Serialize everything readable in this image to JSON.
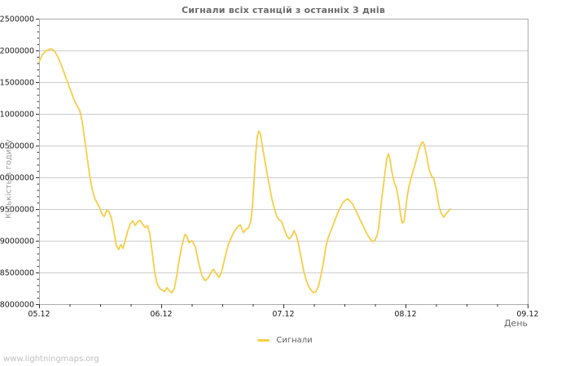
{
  "page": {
    "watermark": "www.lightningmaps.org"
  },
  "colors": {
    "background": "#ffffff",
    "line": "#F6CE47",
    "grid": "#cccccc",
    "plot_border": "#ababab",
    "tick": "#333333",
    "tick_label_text": "#1a1a1a",
    "title_text": "#6b6b6b",
    "y_axis_title_text": "#9a9a9a",
    "x_axis_title_text": "#666666",
    "legend_text": "#5f5f5f",
    "watermark_text": "#c0c0c0"
  },
  "chart_data": {
    "type": "line",
    "title": "Сигнали всіх станцій з останніх 3 днів",
    "xlabel": "День",
    "ylabel": "Кількість в годину",
    "grid": true,
    "ylim": [
      8000000,
      12500000
    ],
    "y_ticks": [
      8000000,
      8500000,
      9000000,
      9500000,
      10000000,
      10500000,
      11000000,
      11500000,
      12000000,
      12500000
    ],
    "y_minor_step": 100000,
    "x_ticks": {
      "labels": [
        "05.12",
        "06.12",
        "07.12",
        "08.12",
        "09.12"
      ],
      "positions_days": [
        0,
        1,
        2,
        3,
        4
      ],
      "minor_step_days": 0.25
    },
    "legend": {
      "position": "bottom-center",
      "entries": [
        {
          "label": "Сигнали",
          "color": "#F6CE47"
        }
      ]
    },
    "series": [
      {
        "name": "Сигнали",
        "color": "#F6CE47",
        "x_unit": "days since 05.12 00:00",
        "y_unit": "signals per hour",
        "points": [
          [
            0.0,
            11820000
          ],
          [
            0.027,
            11930000
          ],
          [
            0.053,
            11990000
          ],
          [
            0.087,
            12020000
          ],
          [
            0.107,
            12020000
          ],
          [
            0.127,
            11990000
          ],
          [
            0.153,
            11900000
          ],
          [
            0.18,
            11780000
          ],
          [
            0.207,
            11640000
          ],
          [
            0.233,
            11500000
          ],
          [
            0.26,
            11360000
          ],
          [
            0.287,
            11220000
          ],
          [
            0.313,
            11120000
          ],
          [
            0.333,
            11050000
          ],
          [
            0.353,
            10880000
          ],
          [
            0.373,
            10600000
          ],
          [
            0.393,
            10320000
          ],
          [
            0.413,
            10050000
          ],
          [
            0.433,
            9820000
          ],
          [
            0.453,
            9680000
          ],
          [
            0.473,
            9600000
          ],
          [
            0.493,
            9530000
          ],
          [
            0.513,
            9430000
          ],
          [
            0.533,
            9380000
          ],
          [
            0.553,
            9480000
          ],
          [
            0.573,
            9460000
          ],
          [
            0.593,
            9350000
          ],
          [
            0.613,
            9150000
          ],
          [
            0.633,
            8920000
          ],
          [
            0.653,
            8860000
          ],
          [
            0.667,
            8940000
          ],
          [
            0.687,
            8880000
          ],
          [
            0.707,
            9020000
          ],
          [
            0.727,
            9160000
          ],
          [
            0.747,
            9270000
          ],
          [
            0.767,
            9310000
          ],
          [
            0.787,
            9240000
          ],
          [
            0.807,
            9300000
          ],
          [
            0.827,
            9320000
          ],
          [
            0.847,
            9260000
          ],
          [
            0.867,
            9210000
          ],
          [
            0.887,
            9240000
          ],
          [
            0.907,
            9100000
          ],
          [
            0.927,
            8800000
          ],
          [
            0.947,
            8500000
          ],
          [
            0.967,
            8320000
          ],
          [
            0.987,
            8250000
          ],
          [
            1.007,
            8220000
          ],
          [
            1.027,
            8200000
          ],
          [
            1.047,
            8260000
          ],
          [
            1.067,
            8210000
          ],
          [
            1.087,
            8180000
          ],
          [
            1.107,
            8250000
          ],
          [
            1.127,
            8450000
          ],
          [
            1.147,
            8700000
          ],
          [
            1.167,
            8900000
          ],
          [
            1.18,
            9000000
          ],
          [
            1.193,
            9100000
          ],
          [
            1.207,
            9080000
          ],
          [
            1.227,
            8970000
          ],
          [
            1.253,
            9000000
          ],
          [
            1.28,
            8900000
          ],
          [
            1.307,
            8650000
          ],
          [
            1.333,
            8450000
          ],
          [
            1.36,
            8370000
          ],
          [
            1.387,
            8420000
          ],
          [
            1.407,
            8500000
          ],
          [
            1.427,
            8550000
          ],
          [
            1.453,
            8470000
          ],
          [
            1.473,
            8420000
          ],
          [
            1.493,
            8500000
          ],
          [
            1.52,
            8720000
          ],
          [
            1.547,
            8920000
          ],
          [
            1.573,
            9050000
          ],
          [
            1.6,
            9150000
          ],
          [
            1.627,
            9220000
          ],
          [
            1.647,
            9250000
          ],
          [
            1.673,
            9130000
          ],
          [
            1.693,
            9180000
          ],
          [
            1.713,
            9200000
          ],
          [
            1.733,
            9300000
          ],
          [
            1.747,
            9550000
          ],
          [
            1.76,
            9950000
          ],
          [
            1.773,
            10350000
          ],
          [
            1.787,
            10650000
          ],
          [
            1.8,
            10730000
          ],
          [
            1.813,
            10680000
          ],
          [
            1.827,
            10500000
          ],
          [
            1.847,
            10280000
          ],
          [
            1.867,
            10050000
          ],
          [
            1.887,
            9850000
          ],
          [
            1.907,
            9650000
          ],
          [
            1.927,
            9500000
          ],
          [
            1.947,
            9380000
          ],
          [
            1.967,
            9320000
          ],
          [
            1.987,
            9300000
          ],
          [
            2.007,
            9180000
          ],
          [
            2.027,
            9080000
          ],
          [
            2.047,
            9030000
          ],
          [
            2.067,
            9070000
          ],
          [
            2.087,
            9160000
          ],
          [
            2.107,
            9080000
          ],
          [
            2.127,
            8920000
          ],
          [
            2.147,
            8720000
          ],
          [
            2.167,
            8520000
          ],
          [
            2.187,
            8380000
          ],
          [
            2.207,
            8280000
          ],
          [
            2.227,
            8220000
          ],
          [
            2.247,
            8180000
          ],
          [
            2.267,
            8200000
          ],
          [
            2.287,
            8280000
          ],
          [
            2.307,
            8450000
          ],
          [
            2.327,
            8650000
          ],
          [
            2.347,
            8900000
          ],
          [
            2.367,
            9050000
          ],
          [
            2.387,
            9150000
          ],
          [
            2.407,
            9250000
          ],
          [
            2.427,
            9350000
          ],
          [
            2.447,
            9450000
          ],
          [
            2.467,
            9530000
          ],
          [
            2.487,
            9600000
          ],
          [
            2.507,
            9640000
          ],
          [
            2.527,
            9660000
          ],
          [
            2.547,
            9620000
          ],
          [
            2.567,
            9580000
          ],
          [
            2.587,
            9500000
          ],
          [
            2.607,
            9420000
          ],
          [
            2.627,
            9340000
          ],
          [
            2.647,
            9260000
          ],
          [
            2.667,
            9180000
          ],
          [
            2.687,
            9100000
          ],
          [
            2.707,
            9040000
          ],
          [
            2.727,
            8990000
          ],
          [
            2.747,
            9000000
          ],
          [
            2.767,
            9080000
          ],
          [
            2.78,
            9200000
          ],
          [
            2.793,
            9450000
          ],
          [
            2.807,
            9700000
          ],
          [
            2.82,
            9880000
          ],
          [
            2.833,
            10100000
          ],
          [
            2.847,
            10300000
          ],
          [
            2.86,
            10370000
          ],
          [
            2.873,
            10280000
          ],
          [
            2.887,
            10100000
          ],
          [
            2.907,
            9920000
          ],
          [
            2.927,
            9820000
          ],
          [
            2.947,
            9600000
          ],
          [
            2.96,
            9400000
          ],
          [
            2.973,
            9280000
          ],
          [
            2.987,
            9300000
          ],
          [
            3.0,
            9480000
          ],
          [
            3.013,
            9680000
          ],
          [
            3.027,
            9850000
          ],
          [
            3.047,
            10000000
          ],
          [
            3.067,
            10130000
          ],
          [
            3.087,
            10270000
          ],
          [
            3.107,
            10420000
          ],
          [
            3.127,
            10520000
          ],
          [
            3.14,
            10560000
          ],
          [
            3.153,
            10520000
          ],
          [
            3.173,
            10330000
          ],
          [
            3.193,
            10120000
          ],
          [
            3.213,
            10020000
          ],
          [
            3.233,
            9970000
          ],
          [
            3.253,
            9780000
          ],
          [
            3.273,
            9550000
          ],
          [
            3.293,
            9430000
          ],
          [
            3.313,
            9370000
          ],
          [
            3.333,
            9430000
          ],
          [
            3.353,
            9470000
          ],
          [
            3.367,
            9500000
          ]
        ]
      }
    ]
  }
}
